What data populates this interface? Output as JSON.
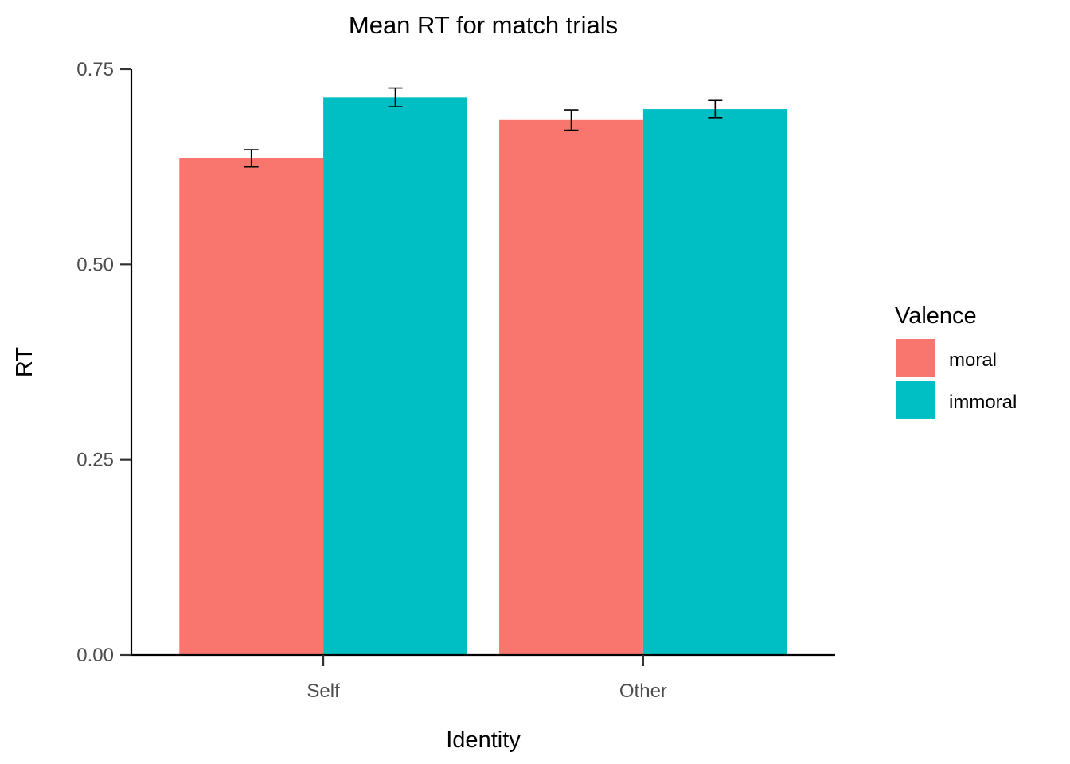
{
  "chart_data": {
    "type": "bar",
    "title": "Mean RT for match trials",
    "xlabel": "Identity",
    "ylabel": "RT",
    "categories": [
      "Self",
      "Other"
    ],
    "series": [
      {
        "name": "moral",
        "color": "#F8766D",
        "values": [
          0.636,
          0.685
        ],
        "error": [
          0.011,
          0.013
        ]
      },
      {
        "name": "immoral",
        "color": "#00BFC4",
        "values": [
          0.714,
          0.699
        ],
        "error": [
          0.012,
          0.011
        ]
      }
    ],
    "ylim": [
      0,
      0.75
    ],
    "yticks": [
      "0.00",
      "0.25",
      "0.50",
      "0.75"
    ],
    "grid": false,
    "legend": {
      "title": "Valence",
      "position": "right"
    }
  }
}
